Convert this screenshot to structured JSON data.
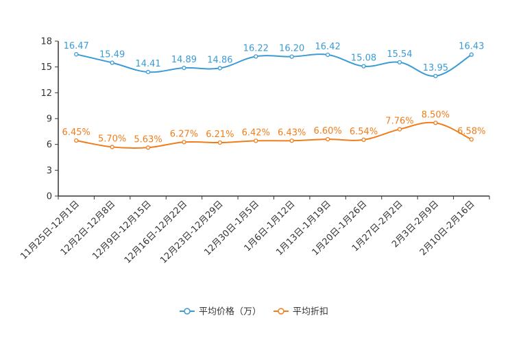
{
  "chart_data": {
    "type": "line",
    "title": "",
    "xlabel": "",
    "ylabel": "",
    "ylim": [
      0,
      18
    ],
    "yticks": [
      0,
      3,
      6,
      9,
      12,
      15,
      18
    ],
    "categories": [
      "11月25日-12月1日",
      "12月2日-12月8日",
      "12月9日-12月15日",
      "12月16日-12月22日",
      "12月23日-12月29日",
      "12月30日-1月5日",
      "1月6日-1月12日",
      "1月13日-1月19日",
      "1月20日-1月26日",
      "1月27日-2月2日",
      "2月3日-2月9日",
      "2月10日-2月16日"
    ],
    "series": [
      {
        "name": "平均价格（万）",
        "color": "#3a9bd5",
        "values": [
          16.47,
          15.49,
          14.41,
          14.89,
          14.86,
          16.22,
          16.2,
          16.42,
          15.08,
          15.54,
          13.95,
          16.43
        ],
        "labels": [
          "16.47",
          "15.49",
          "14.41",
          "14.89",
          "14.86",
          "16.22",
          "16.20",
          "16.42",
          "15.08",
          "15.54",
          "13.95",
          "16.43"
        ]
      },
      {
        "name": "平均折扣",
        "color": "#f07d1a",
        "values": [
          6.45,
          5.7,
          5.63,
          6.27,
          6.21,
          6.42,
          6.43,
          6.6,
          6.54,
          7.76,
          8.5,
          6.58
        ],
        "labels": [
          "6.45%",
          "5.70%",
          "5.63%",
          "6.27%",
          "6.21%",
          "6.42%",
          "6.43%",
          "6.60%",
          "6.54%",
          "7.76%",
          "8.50%",
          "6.58%"
        ]
      }
    ],
    "legend_position": "bottom-center"
  }
}
